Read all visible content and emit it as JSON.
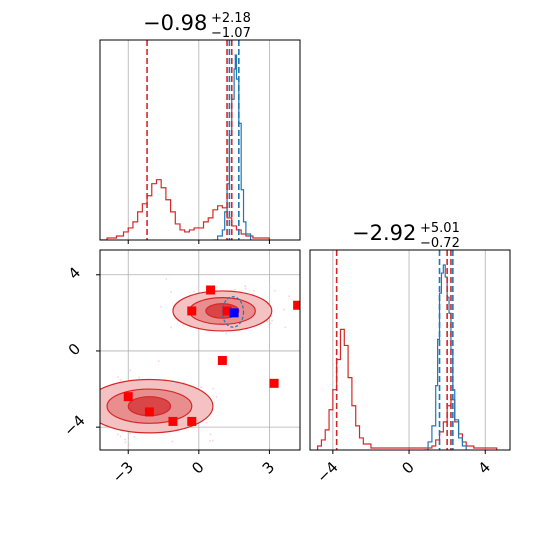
{
  "chart_data": {
    "type": "corner",
    "colors": {
      "samples": "#d62728",
      "reference": "#1f77b4",
      "marker_red": "#ff0000",
      "marker_blue": "#0000ff"
    },
    "grid": true,
    "params": [
      {
        "median": "−0.98",
        "plus": "+2.18",
        "minus": "−1.07",
        "range": [
          -4.2,
          4.3
        ]
      },
      {
        "median": "−2.92",
        "plus": "+5.01",
        "minus": "−0.72",
        "range": [
          -5.2,
          5.3
        ]
      }
    ],
    "ticks": {
      "x0": {
        "values": [
          -3,
          0,
          3
        ],
        "labels": [
          "−3",
          "0",
          "3"
        ]
      },
      "y1": {
        "values": [
          4,
          0,
          -4
        ],
        "labels": [
          "4",
          "0",
          "−4"
        ]
      },
      "x1": {
        "values": [
          -4,
          0,
          4
        ],
        "labels": [
          "−4",
          "0",
          "4"
        ]
      }
    },
    "hist_param0": {
      "red_quantile_lines": [
        -2.2,
        1.2,
        1.4
      ],
      "blue_quantile_lines": [
        1.3,
        1.7
      ],
      "red_hist": [
        [
          -4.2,
          0
        ],
        [
          -3.9,
          0.01
        ],
        [
          -3.5,
          0.02
        ],
        [
          -3.2,
          0.04
        ],
        [
          -3.0,
          0.06
        ],
        [
          -2.8,
          0.09
        ],
        [
          -2.6,
          0.14
        ],
        [
          -2.4,
          0.18
        ],
        [
          -2.2,
          0.22
        ],
        [
          -2.0,
          0.28
        ],
        [
          -1.8,
          0.3
        ],
        [
          -1.6,
          0.26
        ],
        [
          -1.4,
          0.2
        ],
        [
          -1.2,
          0.14
        ],
        [
          -1.0,
          0.08
        ],
        [
          -0.8,
          0.05
        ],
        [
          -0.6,
          0.04
        ],
        [
          -0.4,
          0.05
        ],
        [
          -0.2,
          0.06
        ],
        [
          0.0,
          0.06
        ],
        [
          0.2,
          0.09
        ],
        [
          0.4,
          0.11
        ],
        [
          0.6,
          0.15
        ],
        [
          0.8,
          0.17
        ],
        [
          1.0,
          0.16
        ],
        [
          1.2,
          0.11
        ],
        [
          1.4,
          0.07
        ],
        [
          1.6,
          0.05
        ],
        [
          1.8,
          0.03
        ],
        [
          2.0,
          0.02
        ],
        [
          2.3,
          0.01
        ],
        [
          2.6,
          0.01
        ],
        [
          3.0,
          0.0
        ]
      ],
      "blue_hist": [
        [
          0.6,
          0
        ],
        [
          0.8,
          0.02
        ],
        [
          1.0,
          0.05
        ],
        [
          1.1,
          0.14
        ],
        [
          1.2,
          0.28
        ],
        [
          1.3,
          0.52
        ],
        [
          1.4,
          0.7
        ],
        [
          1.5,
          0.85
        ],
        [
          1.55,
          0.92
        ],
        [
          1.6,
          0.8
        ],
        [
          1.7,
          0.58
        ],
        [
          1.8,
          0.25
        ],
        [
          1.9,
          0.09
        ],
        [
          2.0,
          0.03
        ],
        [
          2.2,
          0.0
        ]
      ]
    },
    "hist_param1": {
      "red_quantile_lines": [
        -3.8,
        2.0,
        2.2
      ],
      "blue_quantile_lines": [
        1.6,
        2.3
      ],
      "red_hist": [
        [
          -4.8,
          0.02
        ],
        [
          -4.6,
          0.05
        ],
        [
          -4.4,
          0.1
        ],
        [
          -4.2,
          0.2
        ],
        [
          -4.0,
          0.3
        ],
        [
          -3.8,
          0.45
        ],
        [
          -3.6,
          0.6
        ],
        [
          -3.4,
          0.52
        ],
        [
          -3.2,
          0.36
        ],
        [
          -3.0,
          0.22
        ],
        [
          -2.8,
          0.12
        ],
        [
          -2.6,
          0.06
        ],
        [
          -2.4,
          0.03
        ],
        [
          -2.0,
          0.01
        ],
        [
          0.8,
          0.01
        ],
        [
          1.2,
          0.02
        ],
        [
          1.4,
          0.05
        ],
        [
          1.6,
          0.09
        ],
        [
          1.8,
          0.14
        ],
        [
          2.0,
          0.22
        ],
        [
          2.2,
          0.25
        ],
        [
          2.4,
          0.14
        ],
        [
          2.6,
          0.08
        ],
        [
          2.8,
          0.04
        ],
        [
          3.0,
          0.02
        ],
        [
          3.4,
          0.01
        ],
        [
          4.0,
          0.01
        ],
        [
          4.6,
          0.0
        ]
      ],
      "blue_hist": [
        [
          0.8,
          0
        ],
        [
          1.0,
          0.04
        ],
        [
          1.2,
          0.12
        ],
        [
          1.4,
          0.32
        ],
        [
          1.5,
          0.55
        ],
        [
          1.6,
          0.78
        ],
        [
          1.7,
          0.88
        ],
        [
          1.8,
          0.92
        ],
        [
          1.9,
          0.86
        ],
        [
          2.0,
          0.76
        ],
        [
          2.1,
          0.68
        ],
        [
          2.2,
          0.5
        ],
        [
          2.3,
          0.3
        ],
        [
          2.4,
          0.15
        ],
        [
          2.6,
          0.06
        ],
        [
          2.8,
          0.02
        ],
        [
          3.0,
          0.0
        ]
      ]
    },
    "scatter_2d": {
      "x_param": 0,
      "y_param": 1,
      "blob_upper": {
        "cx": 1.0,
        "cy": 2.1,
        "levels": [
          [
            2.1,
            1.05
          ],
          [
            1.4,
            0.7
          ],
          [
            0.7,
            0.38
          ]
        ]
      },
      "blob_lower": {
        "cx": -2.1,
        "cy": -2.9,
        "levels": [
          [
            2.7,
            1.4
          ],
          [
            1.8,
            0.9
          ],
          [
            0.9,
            0.5
          ]
        ]
      },
      "blue_contour": {
        "cx": 1.45,
        "cy": 2.05,
        "rx": 0.45,
        "ry": 0.8
      },
      "red_markers": [
        [
          -3.0,
          -2.4
        ],
        [
          -2.1,
          -3.2
        ],
        [
          -1.1,
          -3.7
        ],
        [
          -0.3,
          -3.7
        ],
        [
          -0.3,
          2.1
        ],
        [
          0.5,
          3.2
        ],
        [
          1.2,
          2.1
        ],
        [
          1.0,
          -0.5
        ],
        [
          3.2,
          -1.7
        ],
        [
          4.2,
          2.4
        ]
      ],
      "blue_marker": [
        1.5,
        2.0
      ]
    }
  }
}
